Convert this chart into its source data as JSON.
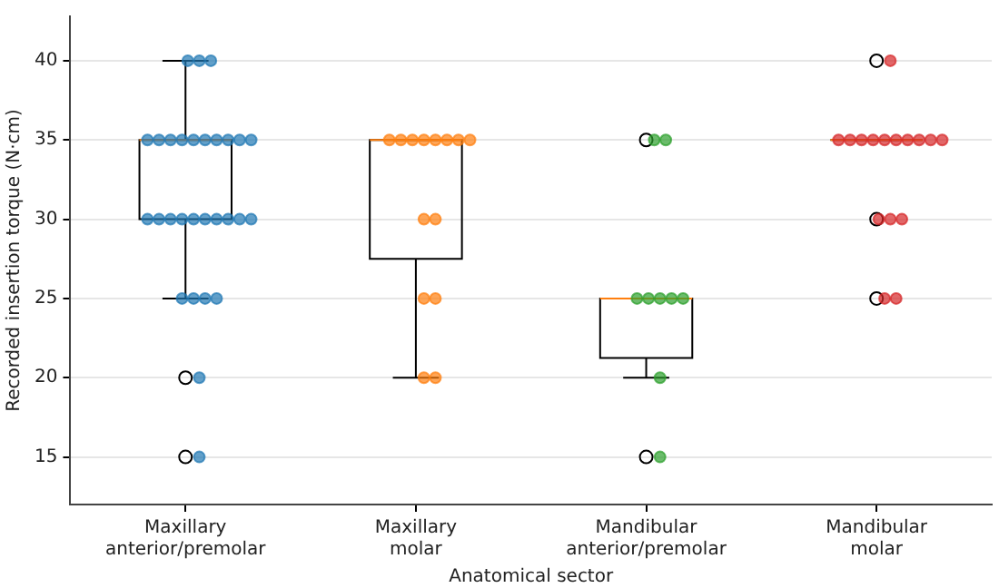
{
  "chart_data": {
    "type": "box",
    "xlabel": "Anatomical sector",
    "ylabel": "Recorded insertion torque (N·cm)",
    "categories": [
      "Maxillary\nanterior/premolar",
      "Maxillary\nmolar",
      "Mandibular\nanterior/premolar",
      "Mandibular\nmolar"
    ],
    "boxes": [
      {
        "low": 25,
        "q1": 30,
        "median": 35,
        "q3": 35,
        "high": 40,
        "outliers": [
          20,
          15
        ]
      },
      {
        "low": 20,
        "q1": 27.5,
        "median": 35,
        "q3": 35,
        "high": 35
      },
      {
        "low": 20,
        "q1": 21.25,
        "median": 25,
        "q3": 25,
        "high": 25,
        "outliers": [
          35,
          15
        ]
      },
      {
        "low": 35,
        "q1": 35,
        "median": 35,
        "q3": 35,
        "high": 35,
        "outliers": [
          40,
          30,
          25
        ]
      }
    ],
    "series": [
      {
        "type": "scatter",
        "color": "#1f77b4",
        "x": [
          "Maxillary\nanterior/premolar",
          "Maxillary\nanterior/premolar",
          "Maxillary\nanterior/premolar",
          "Maxillary\nanterior/premolar",
          "Maxillary\nanterior/premolar",
          "Maxillary\nanterior/premolar",
          "Maxillary\nanterior/premolar",
          "Maxillary\nanterior/premolar",
          "Maxillary\nanterior/premolar",
          "Maxillary\nanterior/premolar",
          "Maxillary\nanterior/premolar",
          "Maxillary\nanterior/premolar",
          "Maxillary\nanterior/premolar",
          "Maxillary\nanterior/premolar",
          "Maxillary\nanterior/premolar",
          "Maxillary\nanterior/premolar",
          "Maxillary\nanterior/premolar",
          "Maxillary\nanterior/premolar",
          "Maxillary\nanterior/premolar",
          "Maxillary\nanterior/premolar",
          "Maxillary\nanterior/premolar",
          "Maxillary\nanterior/premolar",
          "Maxillary\nanterior/premolar",
          "Maxillary\nanterior/premolar",
          "Maxillary\nanterior/premolar",
          "Maxillary\nanterior/premolar",
          "Maxillary\nanterior/premolar",
          "Maxillary\nanterior/premolar",
          "Maxillary\nanterior/premolar"
        ],
        "values": [
          40,
          40,
          40,
          35,
          35,
          35,
          35,
          35,
          35,
          35,
          35,
          35,
          35,
          30,
          30,
          30,
          30,
          30,
          30,
          30,
          30,
          30,
          30,
          25,
          25,
          25,
          25,
          20,
          15
        ]
      },
      {
        "type": "scatter",
        "color": "#ff7f0e",
        "x": [
          "Maxillary\nmolar",
          "Maxillary\nmolar",
          "Maxillary\nmolar",
          "Maxillary\nmolar",
          "Maxillary\nmolar",
          "Maxillary\nmolar",
          "Maxillary\nmolar",
          "Maxillary\nmolar",
          "Maxillary\nmolar",
          "Maxillary\nmolar",
          "Maxillary\nmolar",
          "Maxillary\nmolar",
          "Maxillary\nmolar",
          "Maxillary\nmolar"
        ],
        "values": [
          35,
          35,
          35,
          35,
          35,
          35,
          35,
          35,
          30,
          30,
          25,
          25,
          20,
          20
        ]
      },
      {
        "type": "scatter",
        "color": "#2ca02c",
        "x": [
          "Mandibular\nanterior/premolar",
          "Mandibular\nanterior/premolar",
          "Mandibular\nanterior/premolar",
          "Mandibular\nanterior/premolar",
          "Mandibular\nanterior/premolar",
          "Mandibular\nanterior/premolar",
          "Mandibular\nanterior/premolar",
          "Mandibular\nanterior/premolar",
          "Mandibular\nanterior/premolar"
        ],
        "values": [
          35,
          35,
          25,
          25,
          25,
          25,
          25,
          20,
          15
        ]
      },
      {
        "type": "scatter",
        "color": "#d62728",
        "x": [
          "Mandibular\nmolar",
          "Mandibular\nmolar",
          "Mandibular\nmolar",
          "Mandibular\nmolar",
          "Mandibular\nmolar",
          "Mandibular\nmolar",
          "Mandibular\nmolar",
          "Mandibular\nmolar",
          "Mandibular\nmolar",
          "Mandibular\nmolar",
          "Mandibular\nmolar",
          "Mandibular\nmolar",
          "Mandibular\nmolar",
          "Mandibular\nmolar",
          "Mandibular\nmolar",
          "Mandibular\nmolar"
        ],
        "values": [
          40,
          35,
          35,
          35,
          35,
          35,
          35,
          35,
          35,
          35,
          35,
          30,
          30,
          30,
          25,
          25
        ]
      }
    ],
    "ylim": [
      12,
      42.8
    ],
    "yticks": [
      15,
      20,
      25,
      30,
      35,
      40
    ],
    "grid": "y"
  }
}
